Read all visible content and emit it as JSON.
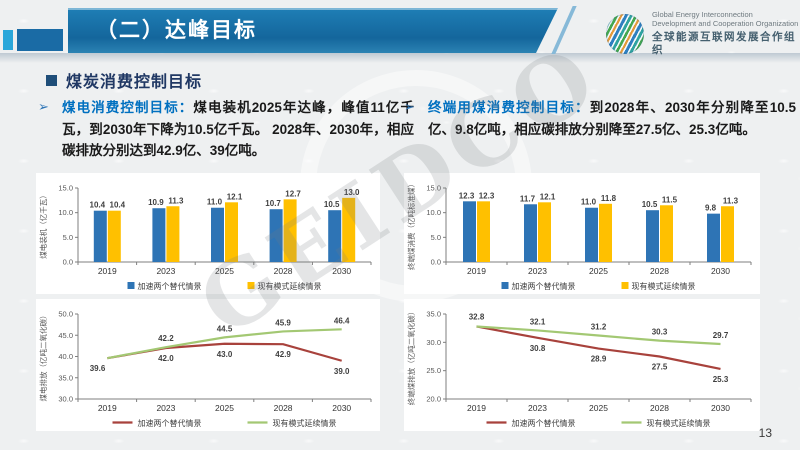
{
  "header": {
    "title": "（二）达峰目标",
    "logo": {
      "en_line1": "Global Energy Interconnection",
      "en_line2": "Development and Cooperation Organization",
      "cn": "全球能源互联网发展合作组织"
    }
  },
  "section": {
    "title": "煤炭消费控制目标"
  },
  "bullets": {
    "left": {
      "marker": "➢",
      "lead": "煤电消费控制目标：",
      "body": "煤电装机2025年达峰，峰值11亿千瓦，到2030年下降为10.5亿千瓦。 2028年、2030年，相应碳排放分别达到42.9亿、39亿吨。"
    },
    "right": {
      "marker": "➢",
      "lead": "终端用煤消费控制目标：",
      "body": "到2028年、2030年分别降至10.5亿、9.8亿吨，相应碳排放分别降至27.5亿、25.3亿吨。"
    }
  },
  "watermark": "GEIDCO",
  "page_number": "13",
  "colors": {
    "bar_blue": "#2E74B5",
    "bar_yellow": "#FFC000",
    "line_red": "#A8423C",
    "line_green": "#A3C873",
    "axis_gray": "#808080",
    "header_blue": "#14669C"
  },
  "chart_data": [
    {
      "id": "coal-power-capacity",
      "type": "bar",
      "ylabel": "煤电装机（亿千瓦）",
      "categories": [
        "2019",
        "2023",
        "2025",
        "2028",
        "2030"
      ],
      "series": [
        {
          "name": "加速两个替代情景",
          "color": "#2E74B5",
          "values": [
            10.4,
            10.9,
            11.0,
            10.7,
            10.5
          ]
        },
        {
          "name": "现有模式延续情景",
          "color": "#FFC000",
          "values": [
            10.4,
            11.3,
            12.1,
            12.7,
            13.0
          ]
        }
      ],
      "ylim": [
        0,
        15
      ],
      "yticks": [
        0,
        5,
        10,
        15
      ],
      "legend_position": "bottom",
      "grid": false
    },
    {
      "id": "end-use-coal-consumption",
      "type": "bar",
      "ylabel": "终端煤消费（亿吨标准煤）",
      "categories": [
        "2019",
        "2023",
        "2025",
        "2028",
        "2030"
      ],
      "series": [
        {
          "name": "加速两个替代情景",
          "color": "#2E74B5",
          "values": [
            12.3,
            11.7,
            11.0,
            10.5,
            9.8
          ]
        },
        {
          "name": "现有模式延续情景",
          "color": "#FFC000",
          "values": [
            12.3,
            12.1,
            11.8,
            11.5,
            11.3
          ]
        }
      ],
      "ylim": [
        0,
        15
      ],
      "yticks": [
        0,
        5,
        10,
        15
      ],
      "legend_position": "bottom",
      "grid": false
    },
    {
      "id": "coal-power-emissions",
      "type": "line",
      "ylabel": "煤电排放（亿吨二氧化碳）",
      "categories": [
        "2019",
        "2023",
        "2025",
        "2028",
        "2030"
      ],
      "series": [
        {
          "name": "加速两个替代情景",
          "color": "#A8423C",
          "values": [
            39.6,
            42.0,
            43.0,
            42.9,
            39.0
          ],
          "label_side": "below"
        },
        {
          "name": "现有模式延续情景",
          "color": "#A3C873",
          "values": [
            39.6,
            42.2,
            44.5,
            45.9,
            46.4
          ],
          "label_side": "above"
        }
      ],
      "ylim": [
        30,
        50
      ],
      "yticks": [
        30,
        35,
        40,
        45,
        50
      ],
      "shared_first_label": {
        "value": "39.6",
        "side": "below-left"
      },
      "legend_position": "bottom",
      "grid": false
    },
    {
      "id": "end-use-coal-emissions",
      "type": "line",
      "ylabel": "终端煤排放（亿吨二氧化碳）",
      "categories": [
        "2019",
        "2023",
        "2025",
        "2028",
        "2030"
      ],
      "series": [
        {
          "name": "加速两个替代情景",
          "color": "#A8423C",
          "values": [
            32.8,
            30.8,
            28.9,
            27.5,
            25.3
          ],
          "label_side": "below"
        },
        {
          "name": "现有模式延续情景",
          "color": "#A3C873",
          "values": [
            32.8,
            32.1,
            31.2,
            30.3,
            29.7
          ],
          "label_side": "above"
        }
      ],
      "ylim": [
        20,
        35
      ],
      "yticks": [
        20,
        25,
        30,
        35
      ],
      "shared_first_label": {
        "value": "32.8",
        "side": "above"
      },
      "legend_position": "bottom",
      "grid": false
    }
  ]
}
